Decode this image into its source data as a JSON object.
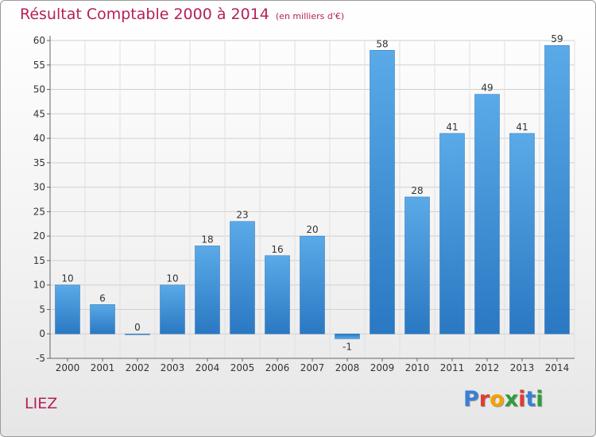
{
  "header": {
    "title": "Résultat Comptable 2000 à 2014",
    "unit": "(en milliers d'€)"
  },
  "footer": {
    "town": "LIEZ",
    "logo_letters": [
      "P",
      "r",
      "o",
      "x",
      "i",
      "t",
      "i"
    ],
    "logo_colors": [
      "#3a7fd6",
      "#e03c31",
      "#f5a100",
      "#2e9e3a",
      "#e03c31",
      "#3a7fd6",
      "#2e9e3a"
    ]
  },
  "colors": {
    "bar": "#4f9fe0",
    "bar_dark": "#2a78c2",
    "title": "#b5205a",
    "grid": "#d0d0d0"
  },
  "chart_data": {
    "type": "bar",
    "title": "Résultat Comptable 2000 à 2014",
    "categories": [
      "2000",
      "2001",
      "2002",
      "2003",
      "2004",
      "2005",
      "2006",
      "2007",
      "2008",
      "2009",
      "2010",
      "2011",
      "2012",
      "2013",
      "2014"
    ],
    "values": [
      10,
      6,
      0,
      10,
      18,
      23,
      16,
      20,
      -1,
      58,
      28,
      41,
      49,
      41,
      59
    ],
    "ylim": [
      -5,
      60
    ],
    "yticks": [
      -5,
      0,
      5,
      10,
      15,
      20,
      25,
      30,
      35,
      40,
      45,
      50,
      55,
      60
    ],
    "xlabel": "",
    "ylabel": "",
    "grid": true
  }
}
